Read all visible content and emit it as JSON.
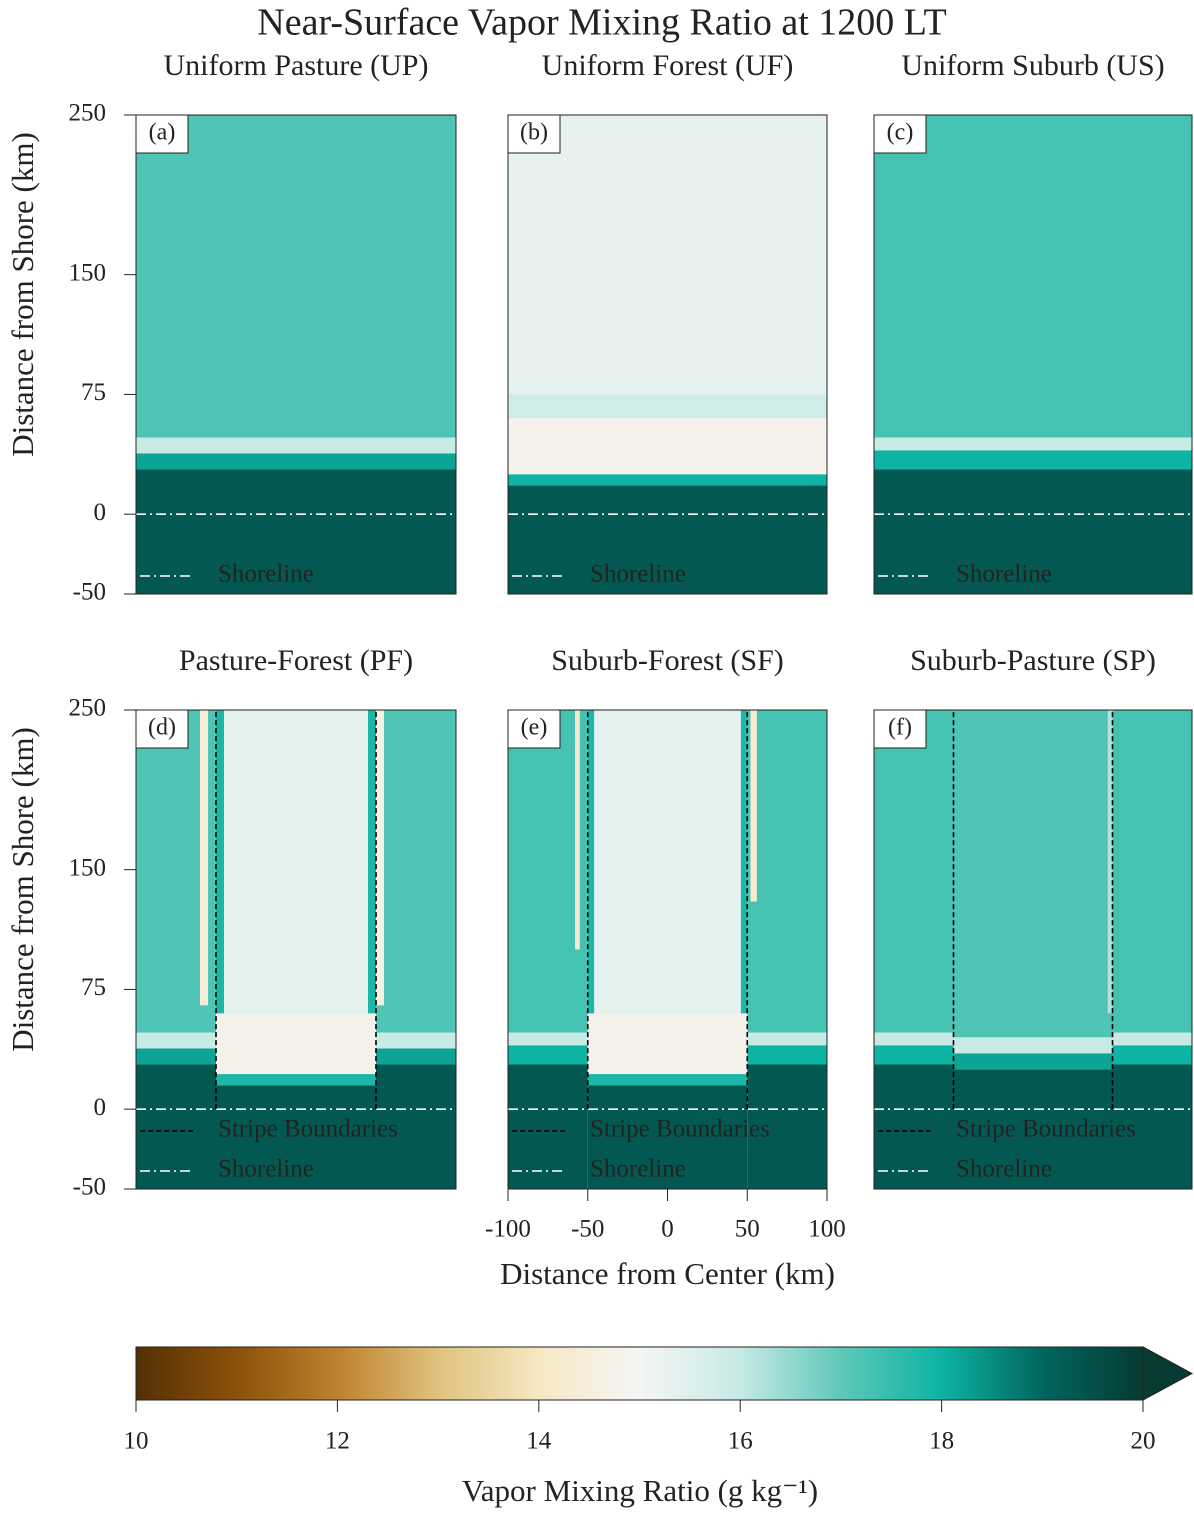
{
  "chart_data": {
    "type": "heatmap-grid",
    "title": "Near-Surface Vapor Mixing Ratio at 1200 LT",
    "panels": [
      {
        "type": "heatmap",
        "title": "Uniform Pasture (UP)",
        "letter": "(a)",
        "ylabel": "Distance from Shore (km)",
        "xlim": [
          -100,
          100
        ],
        "ylim": [
          -50,
          250
        ],
        "yticks": [
          -50,
          0,
          75,
          150,
          250
        ],
        "shoreline_y": 0,
        "legend": [
          "Shoreline"
        ],
        "regions": [
          {
            "x": [
              -100,
              100
            ],
            "y": [
              -50,
              28
            ],
            "value": 19.3
          },
          {
            "x": [
              -100,
              100
            ],
            "y": [
              28,
              38
            ],
            "value": 18.2
          },
          {
            "x": [
              -100,
              100
            ],
            "y": [
              38,
              48
            ],
            "value": 16
          },
          {
            "x": [
              -100,
              100
            ],
            "y": [
              48,
              250
            ],
            "value": 17.2
          }
        ]
      },
      {
        "type": "heatmap",
        "title": "Uniform Forest (UF)",
        "letter": "(b)",
        "xlim": [
          -100,
          100
        ],
        "ylim": [
          -50,
          250
        ],
        "shoreline_y": 0,
        "legend": [
          "Shoreline"
        ],
        "regions": [
          {
            "x": [
              -100,
              100
            ],
            "y": [
              -50,
              18
            ],
            "value": 19.3
          },
          {
            "x": [
              -100,
              100
            ],
            "y": [
              18,
              25
            ],
            "value": 18
          },
          {
            "x": [
              -100,
              100
            ],
            "y": [
              25,
              60
            ],
            "value": 14.8
          },
          {
            "x": [
              -100,
              100
            ],
            "y": [
              60,
              75
            ],
            "value": 15.8
          },
          {
            "x": [
              -100,
              100
            ],
            "y": [
              75,
              250
            ],
            "value": 15.3
          }
        ]
      },
      {
        "type": "heatmap",
        "title": "Uniform Suburb (US)",
        "letter": "(c)",
        "xlim": [
          -100,
          100
        ],
        "ylim": [
          -50,
          250
        ],
        "shoreline_y": 0,
        "legend": [
          "Shoreline"
        ],
        "regions": [
          {
            "x": [
              -100,
              100
            ],
            "y": [
              -50,
              28
            ],
            "value": 19.3
          },
          {
            "x": [
              -100,
              100
            ],
            "y": [
              28,
              40
            ],
            "value": 18
          },
          {
            "x": [
              -100,
              100
            ],
            "y": [
              40,
              48
            ],
            "value": 16
          },
          {
            "x": [
              -100,
              100
            ],
            "y": [
              48,
              250
            ],
            "value": 17.3
          }
        ]
      },
      {
        "type": "heatmap",
        "title": "Pasture-Forest (PF)",
        "letter": "(d)",
        "ylabel": "Distance from Shore (km)",
        "xlim": [
          -100,
          100
        ],
        "ylim": [
          -50,
          250
        ],
        "yticks": [
          -50,
          0,
          75,
          150,
          250
        ],
        "shoreline_y": 0,
        "stripe_boundaries": [
          -50,
          50
        ],
        "legend": [
          "Stripe Boundaries",
          "Shoreline"
        ],
        "regions": [
          {
            "x": [
              -100,
              -50
            ],
            "y": [
              -50,
              28
            ],
            "value": 19.3
          },
          {
            "x": [
              -100,
              -50
            ],
            "y": [
              28,
              38
            ],
            "value": 18.2
          },
          {
            "x": [
              -100,
              -50
            ],
            "y": [
              38,
              48
            ],
            "value": 16
          },
          {
            "x": [
              -100,
              -50
            ],
            "y": [
              48,
              250
            ],
            "value": 17.2
          },
          {
            "x": [
              50,
              100
            ],
            "y": [
              -50,
              28
            ],
            "value": 19.3
          },
          {
            "x": [
              50,
              100
            ],
            "y": [
              28,
              38
            ],
            "value": 18.2
          },
          {
            "x": [
              50,
              100
            ],
            "y": [
              38,
              48
            ],
            "value": 16
          },
          {
            "x": [
              50,
              100
            ],
            "y": [
              48,
              250
            ],
            "value": 17.2
          },
          {
            "x": [
              -50,
              50
            ],
            "y": [
              -50,
              15
            ],
            "value": 19.3
          },
          {
            "x": [
              -50,
              50
            ],
            "y": [
              15,
              22
            ],
            "value": 17.8
          },
          {
            "x": [
              -50,
              50
            ],
            "y": [
              22,
              60
            ],
            "value": 14.8
          },
          {
            "x": [
              -50,
              50
            ],
            "y": [
              60,
              250
            ],
            "value": 15.4
          },
          {
            "x": [
              -60,
              -55
            ],
            "y": [
              65,
              250
            ],
            "value": 14.4
          },
          {
            "x": [
              -50,
              -45
            ],
            "y": [
              60,
              250
            ],
            "value": 17.8
          },
          {
            "x": [
              45,
              50
            ],
            "y": [
              60,
              250
            ],
            "value": 17.8
          },
          {
            "x": [
              50,
              55
            ],
            "y": [
              65,
              250
            ],
            "value": 14.6
          }
        ]
      },
      {
        "type": "heatmap",
        "title": "Suburb-Forest (SF)",
        "letter": "(e)",
        "xlabel": "Distance from Center (km)",
        "xlim": [
          -100,
          100
        ],
        "ylim": [
          -50,
          250
        ],
        "xticks": [
          -100,
          -50,
          0,
          50,
          100
        ],
        "shoreline_y": 0,
        "stripe_boundaries": [
          -50,
          50
        ],
        "legend": [
          "Stripe Boundaries",
          "Shoreline"
        ],
        "regions": [
          {
            "x": [
              -100,
              -50
            ],
            "y": [
              -50,
              28
            ],
            "value": 19.3
          },
          {
            "x": [
              -100,
              -50
            ],
            "y": [
              28,
              40
            ],
            "value": 18
          },
          {
            "x": [
              -100,
              -50
            ],
            "y": [
              40,
              48
            ],
            "value": 16
          },
          {
            "x": [
              -100,
              -50
            ],
            "y": [
              48,
              250
            ],
            "value": 17.3
          },
          {
            "x": [
              50,
              100
            ],
            "y": [
              -50,
              28
            ],
            "value": 19.3
          },
          {
            "x": [
              50,
              100
            ],
            "y": [
              28,
              40
            ],
            "value": 18
          },
          {
            "x": [
              50,
              100
            ],
            "y": [
              40,
              48
            ],
            "value": 16
          },
          {
            "x": [
              50,
              100
            ],
            "y": [
              48,
              250
            ],
            "value": 17.3
          },
          {
            "x": [
              -50,
              50
            ],
            "y": [
              -50,
              15
            ],
            "value": 19.3
          },
          {
            "x": [
              -50,
              50
            ],
            "y": [
              15,
              22
            ],
            "value": 17.8
          },
          {
            "x": [
              -50,
              50
            ],
            "y": [
              22,
              60
            ],
            "value": 14.8
          },
          {
            "x": [
              -50,
              50
            ],
            "y": [
              60,
              250
            ],
            "value": 15.4
          },
          {
            "x": [
              -58,
              -55
            ],
            "y": [
              100,
              250
            ],
            "value": 14.2
          },
          {
            "x": [
              -50,
              -46
            ],
            "y": [
              60,
              250
            ],
            "value": 17.8
          },
          {
            "x": [
              46,
              50
            ],
            "y": [
              60,
              250
            ],
            "value": 17.8
          },
          {
            "x": [
              52,
              56
            ],
            "y": [
              130,
              250
            ],
            "value": 14.2
          }
        ]
      },
      {
        "type": "heatmap",
        "title": "Suburb-Pasture (SP)",
        "letter": "(f)",
        "xlim": [
          -100,
          100
        ],
        "ylim": [
          -50,
          250
        ],
        "shoreline_y": 0,
        "stripe_boundaries": [
          -50,
          50
        ],
        "legend": [
          "Stripe Boundaries",
          "Shoreline"
        ],
        "regions": [
          {
            "x": [
              -100,
              -50
            ],
            "y": [
              -50,
              28
            ],
            "value": 19.3
          },
          {
            "x": [
              -100,
              -50
            ],
            "y": [
              28,
              40
            ],
            "value": 18
          },
          {
            "x": [
              -100,
              -50
            ],
            "y": [
              40,
              48
            ],
            "value": 16
          },
          {
            "x": [
              -100,
              -50
            ],
            "y": [
              48,
              250
            ],
            "value": 17.3
          },
          {
            "x": [
              50,
              100
            ],
            "y": [
              -50,
              28
            ],
            "value": 19.3
          },
          {
            "x": [
              50,
              100
            ],
            "y": [
              28,
              40
            ],
            "value": 18
          },
          {
            "x": [
              50,
              100
            ],
            "y": [
              40,
              48
            ],
            "value": 16
          },
          {
            "x": [
              50,
              100
            ],
            "y": [
              48,
              250
            ],
            "value": 17.3
          },
          {
            "x": [
              -50,
              50
            ],
            "y": [
              -50,
              25
            ],
            "value": 19.3
          },
          {
            "x": [
              -50,
              50
            ],
            "y": [
              25,
              35
            ],
            "value": 18.2
          },
          {
            "x": [
              -50,
              50
            ],
            "y": [
              35,
              45
            ],
            "value": 16
          },
          {
            "x": [
              -50,
              50
            ],
            "y": [
              45,
              250
            ],
            "value": 17.2
          },
          {
            "x": [
              47,
              50
            ],
            "y": [
              60,
              250
            ],
            "value": 16.2
          }
        ]
      }
    ],
    "colorbar": {
      "label": "Vapor Mixing Ratio (g kg⁻¹)",
      "lim": [
        10,
        20
      ],
      "ticks": [
        10,
        12,
        14,
        16,
        18,
        20
      ],
      "extend": "max",
      "colors": [
        "#543005",
        "#8c510a",
        "#bf812d",
        "#dfc27d",
        "#f6e8c3",
        "#f5f5f5",
        "#c7eae5",
        "#5ec8b8",
        "#0db3a3",
        "#01665e",
        "#063a32"
      ]
    }
  }
}
